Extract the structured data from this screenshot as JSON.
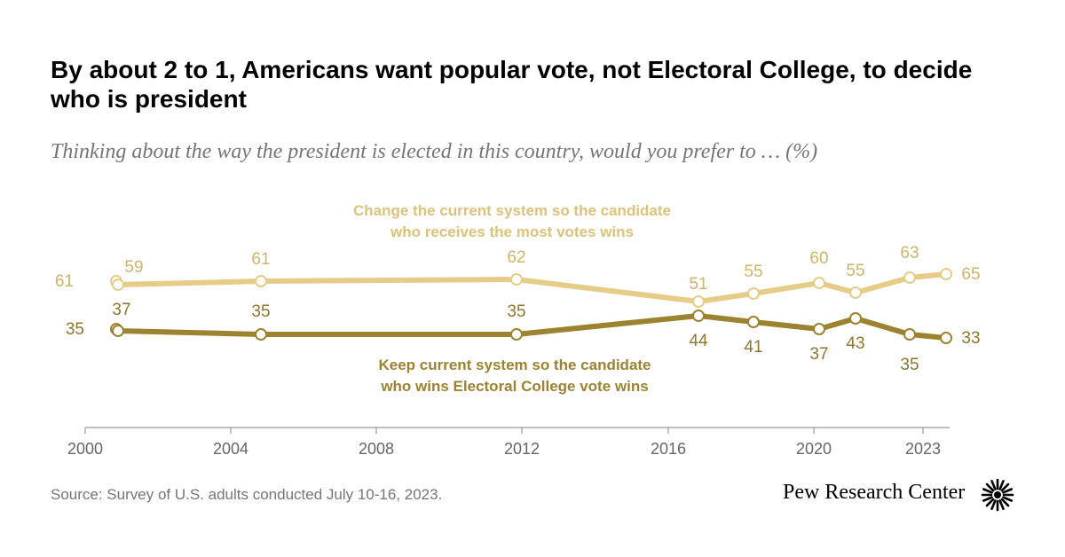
{
  "title": "By about 2 to 1, Americans want popular vote, not Electoral College, to decide who is president",
  "subtitle": "Thinking about the way the president is elected in this country, would you prefer to … (%)",
  "source": "Source: Survey of U.S. adults conducted July 10-16, 2023.",
  "brand": "Pew Research Center",
  "colors": {
    "change": "#e5cc87",
    "keep": "#9b8330",
    "axis": "#9a9a9a"
  },
  "chart_data": {
    "type": "line",
    "xlim": [
      2000,
      2023.6
    ],
    "ylim": [
      20,
      75
    ],
    "x_ticks": [
      "2000",
      "2004",
      "2008",
      "2012",
      "2016",
      "2020",
      "2023"
    ],
    "series": [
      {
        "name": "Change the current system so the candidate who receives the most votes wins",
        "title_lines": [
          "Change the current system so the candidate",
          "who receives the most votes wins"
        ],
        "x": [
          2000.9,
          2000.95,
          2004.9,
          2011.9,
          2016.9,
          2018.3,
          2020.1,
          2021.0,
          2022.4,
          2023.4
        ],
        "values": [
          61,
          59,
          61,
          62,
          51,
          55,
          60,
          55,
          63,
          65
        ]
      },
      {
        "name": "Keep current system so the candidate who wins Electoral College vote wins",
        "title_lines": [
          "Keep current system so the candidate",
          "who wins Electoral College vote wins"
        ],
        "x": [
          2000.9,
          2000.95,
          2004.9,
          2011.9,
          2016.9,
          2018.3,
          2020.1,
          2021.0,
          2022.4,
          2023.4
        ],
        "values": [
          35,
          37,
          35,
          35,
          44,
          41,
          37,
          43,
          35,
          33
        ]
      }
    ]
  }
}
